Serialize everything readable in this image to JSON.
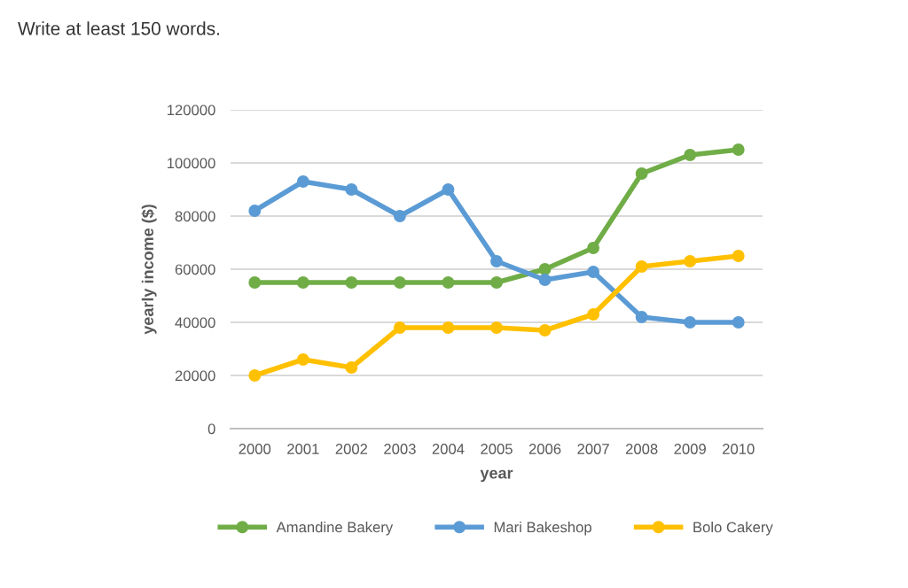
{
  "chart_data": {
    "type": "line",
    "title": "Write at least 150 words.",
    "xlabel": "year",
    "ylabel": "yearly income ($)",
    "categories": [
      "2000",
      "2001",
      "2002",
      "2003",
      "2004",
      "2005",
      "2006",
      "2007",
      "2008",
      "2009",
      "2010"
    ],
    "series": [
      {
        "name": "Amandine Bakery",
        "color": "#70ad47",
        "values": [
          55000,
          55000,
          55000,
          55000,
          55000,
          55000,
          60000,
          68000,
          96000,
          103000,
          105000
        ]
      },
      {
        "name": "Mari Bakeshop",
        "color": "#5b9bd5",
        "values": [
          82000,
          93000,
          90000,
          80000,
          90000,
          63000,
          56000,
          59000,
          42000,
          40000,
          40000
        ]
      },
      {
        "name": "Bolo Cakery",
        "color": "#ffc000",
        "values": [
          20000,
          26000,
          23000,
          38000,
          38000,
          38000,
          37000,
          43000,
          61000,
          63000,
          65000
        ]
      }
    ],
    "ylim": [
      0,
      120000
    ],
    "yticks": [
      0,
      20000,
      40000,
      60000,
      80000,
      100000,
      120000
    ],
    "grid": "y",
    "legend": "bottom",
    "marker": "circle",
    "line_style": "solid"
  }
}
